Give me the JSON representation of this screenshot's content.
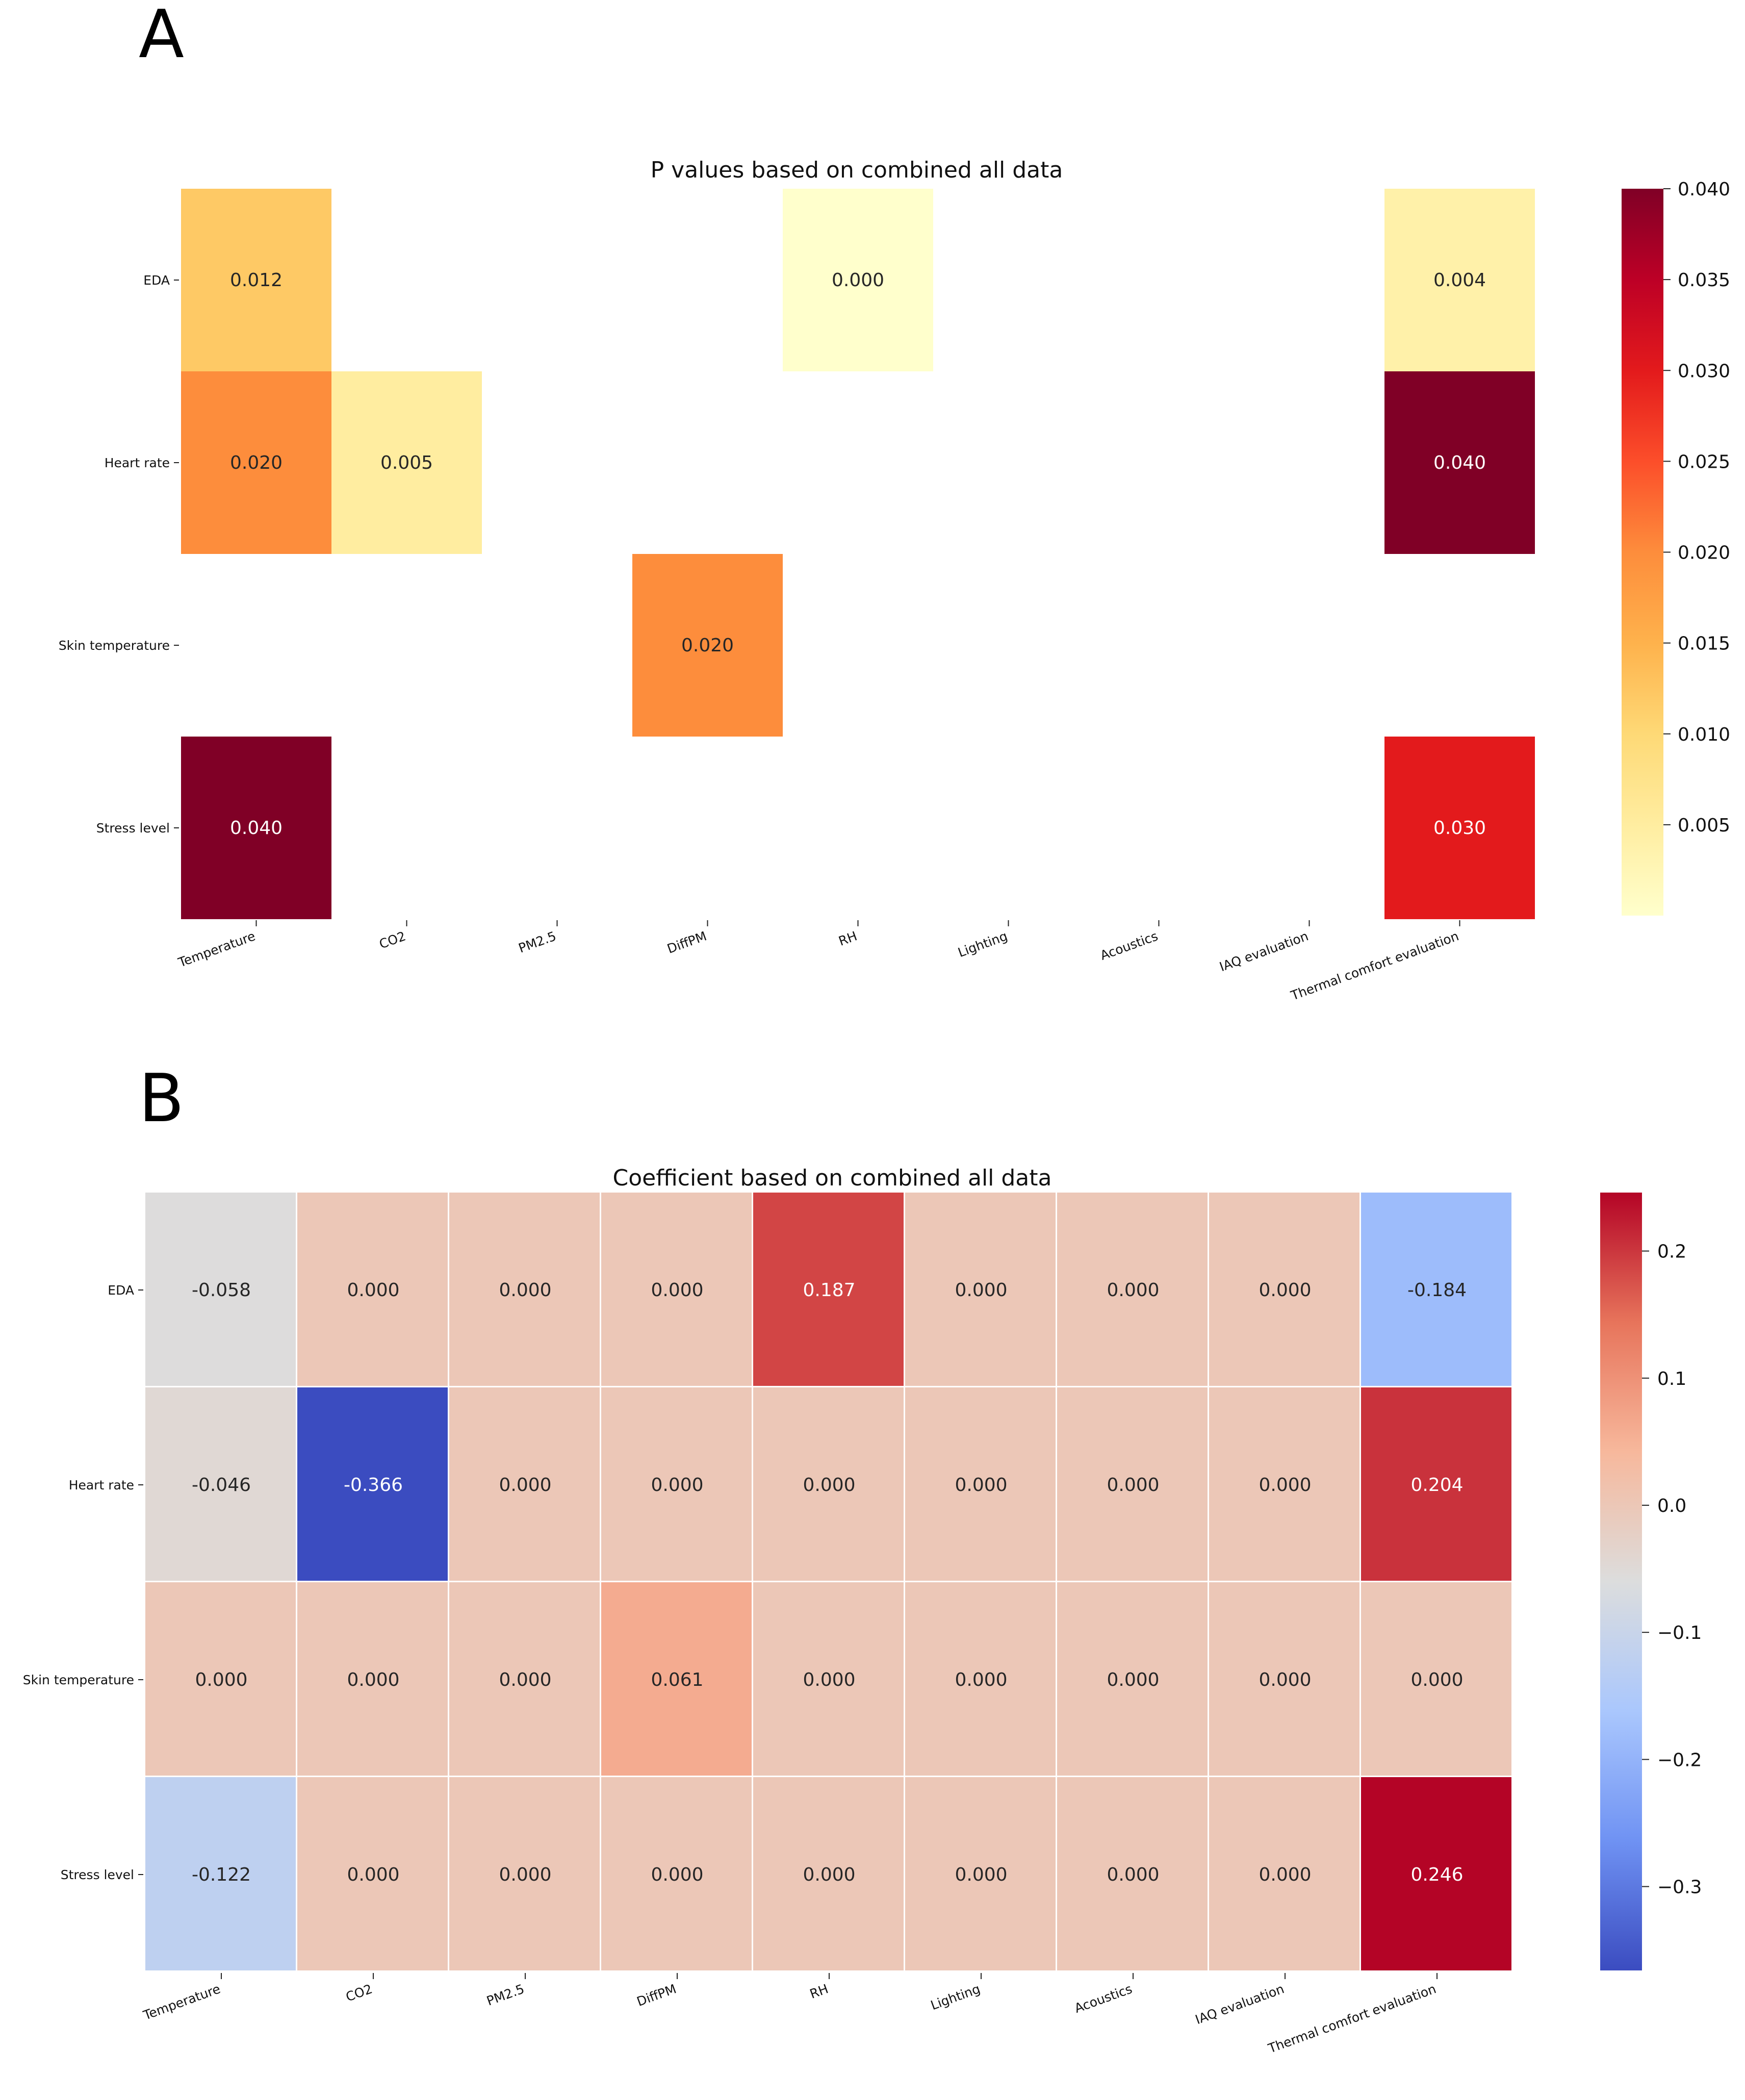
{
  "panels": {
    "a_letter": "A",
    "b_letter": "B"
  },
  "colors": {
    "ylorrd": [
      "#ffffcc",
      "#ffeda0",
      "#fed976",
      "#feb24c",
      "#fd8d3c",
      "#fc4e2a",
      "#e31a1c",
      "#bd0026",
      "#800026"
    ],
    "coolwarm": [
      "#3b4cc0",
      "#6f92f3",
      "#aac7fd",
      "#dcdddd",
      "#f7b89c",
      "#e7745b",
      "#b40426"
    ]
  },
  "chart_data": [
    {
      "id": "pvalues",
      "type": "heatmap",
      "title": "P values based on combined all data",
      "rows": [
        "EDA",
        "Heart rate",
        "Skin temperature",
        "Stress level"
      ],
      "columns": [
        "Temperature",
        "CO2",
        "PM2.5",
        "DiffPM",
        "RH",
        "Lighting",
        "Acoustics",
        "IAQ evaluation",
        "Thermal comfort evaluation"
      ],
      "values": [
        [
          0.012,
          null,
          null,
          null,
          0.0,
          null,
          null,
          null,
          0.004
        ],
        [
          0.02,
          0.005,
          null,
          null,
          null,
          null,
          null,
          null,
          0.04
        ],
        [
          null,
          null,
          null,
          0.02,
          null,
          null,
          null,
          null,
          null
        ],
        [
          0.04,
          null,
          null,
          null,
          null,
          null,
          null,
          null,
          0.03
        ]
      ],
      "labels": [
        [
          "0.012",
          null,
          null,
          null,
          "0.000",
          null,
          null,
          null,
          "0.004"
        ],
        [
          "0.020",
          "0.005",
          null,
          null,
          null,
          null,
          null,
          null,
          "0.040"
        ],
        [
          null,
          null,
          null,
          "0.020",
          null,
          null,
          null,
          null,
          null
        ],
        [
          "0.040",
          null,
          null,
          null,
          null,
          null,
          null,
          null,
          "0.030"
        ]
      ],
      "vmin": 0.0,
      "vmax": 0.04,
      "colormap": "YlOrRd",
      "colorbar_ticks": [
        0.04,
        0.035,
        0.03,
        0.025,
        0.02,
        0.015,
        0.01,
        0.005
      ],
      "colorbar_tick_labels": [
        "0.040",
        "0.035",
        "0.030",
        "0.025",
        "0.020",
        "0.015",
        "0.010",
        "0.005"
      ]
    },
    {
      "id": "coefficients",
      "type": "heatmap",
      "title": "Coefficient based on combined all data",
      "rows": [
        "EDA",
        "Heart rate",
        "Skin temperature",
        "Stress level"
      ],
      "columns": [
        "Temperature",
        "CO2",
        "PM2.5",
        "DiffPM",
        "RH",
        "Lighting",
        "Acoustics",
        "IAQ evaluation",
        "Thermal comfort evaluation"
      ],
      "values": [
        [
          -0.058,
          0.0,
          0.0,
          0.0,
          0.187,
          0.0,
          0.0,
          0.0,
          -0.184
        ],
        [
          -0.046,
          -0.366,
          0.0,
          0.0,
          0.0,
          0.0,
          0.0,
          0.0,
          0.204
        ],
        [
          0.0,
          0.0,
          0.0,
          0.061,
          0.0,
          0.0,
          0.0,
          0.0,
          0.0
        ],
        [
          -0.122,
          0.0,
          0.0,
          0.0,
          0.0,
          0.0,
          0.0,
          0.0,
          0.246
        ]
      ],
      "labels": [
        [
          "-0.058",
          "0.000",
          "0.000",
          "0.000",
          "0.187",
          "0.000",
          "0.000",
          "0.000",
          "-0.184"
        ],
        [
          "-0.046",
          "-0.366",
          "0.000",
          "0.000",
          "0.000",
          "0.000",
          "0.000",
          "0.000",
          "0.204"
        ],
        [
          "0.000",
          "0.000",
          "0.000",
          "0.061",
          "0.000",
          "0.000",
          "0.000",
          "0.000",
          "0.000"
        ],
        [
          "-0.122",
          "0.000",
          "0.000",
          "0.000",
          "0.000",
          "0.000",
          "0.000",
          "0.000",
          "0.246"
        ]
      ],
      "vmin": -0.366,
      "vmax": 0.246,
      "colormap": "coolwarm",
      "colorbar_ticks": [
        0.2,
        0.1,
        0.0,
        -0.1,
        -0.2,
        -0.3
      ],
      "colorbar_tick_labels": [
        "0.2",
        "0.1",
        "0.0",
        "−0.1",
        "−0.2",
        "−0.3"
      ]
    }
  ]
}
